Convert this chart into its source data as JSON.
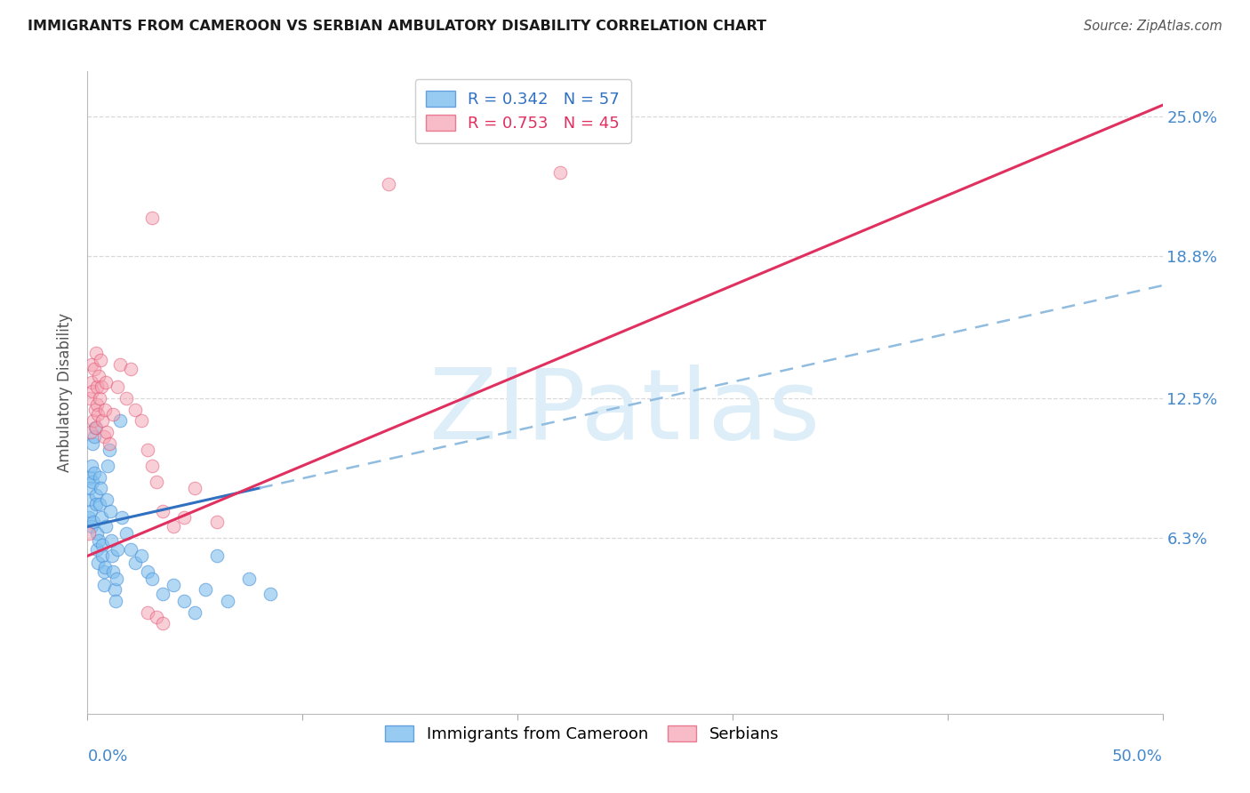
{
  "title": "IMMIGRANTS FROM CAMEROON VS SERBIAN AMBULATORY DISABILITY CORRELATION CHART",
  "source": "Source: ZipAtlas.com",
  "ylabel": "Ambulatory Disability",
  "x_min": 0.0,
  "x_max": 50.0,
  "y_min": -1.5,
  "y_max": 27.0,
  "y_ticks": [
    6.3,
    12.5,
    18.8,
    25.0
  ],
  "blue_color": "#7fbfee",
  "blue_edge_color": "#4a90d9",
  "pink_color": "#f4a0b0",
  "pink_edge_color": "#e05070",
  "blue_line_color": "#3070c0",
  "pink_line_color": "#e03060",
  "dashed_line_color": "#90bce0",
  "background_color": "#ffffff",
  "grid_color": "#d8d8d8",
  "watermark_text": "ZIPatlas",
  "watermark_color": "#ddeef8",
  "right_tick_color": "#4488cc",
  "blue_R": 0.342,
  "blue_N": 57,
  "pink_R": 0.753,
  "pink_N": 45,
  "blue_trend_x0": 0.0,
  "blue_trend_y0": 6.8,
  "blue_trend_x1": 50.0,
  "blue_trend_y1": 17.5,
  "blue_solid_x1": 8.0,
  "pink_trend_x0": 0.0,
  "pink_trend_y0": 5.5,
  "pink_trend_x1": 50.0,
  "pink_trend_y1": 25.5,
  "blue_scatter": [
    [
      0.05,
      7.2
    ],
    [
      0.08,
      8.0
    ],
    [
      0.1,
      9.0
    ],
    [
      0.12,
      8.5
    ],
    [
      0.15,
      7.5
    ],
    [
      0.18,
      6.8
    ],
    [
      0.2,
      9.5
    ],
    [
      0.22,
      10.5
    ],
    [
      0.25,
      8.8
    ],
    [
      0.28,
      7.0
    ],
    [
      0.3,
      10.8
    ],
    [
      0.32,
      9.2
    ],
    [
      0.35,
      11.2
    ],
    [
      0.38,
      8.2
    ],
    [
      0.4,
      7.8
    ],
    [
      0.42,
      6.5
    ],
    [
      0.45,
      5.8
    ],
    [
      0.48,
      5.2
    ],
    [
      0.5,
      6.2
    ],
    [
      0.55,
      7.8
    ],
    [
      0.58,
      9.0
    ],
    [
      0.6,
      8.5
    ],
    [
      0.65,
      7.2
    ],
    [
      0.68,
      6.0
    ],
    [
      0.7,
      5.5
    ],
    [
      0.75,
      4.8
    ],
    [
      0.78,
      4.2
    ],
    [
      0.8,
      5.0
    ],
    [
      0.85,
      6.8
    ],
    [
      0.9,
      8.0
    ],
    [
      0.95,
      9.5
    ],
    [
      1.0,
      10.2
    ],
    [
      1.05,
      7.5
    ],
    [
      1.1,
      6.2
    ],
    [
      1.15,
      5.5
    ],
    [
      1.2,
      4.8
    ],
    [
      1.25,
      4.0
    ],
    [
      1.3,
      3.5
    ],
    [
      1.35,
      4.5
    ],
    [
      1.4,
      5.8
    ],
    [
      1.5,
      11.5
    ],
    [
      1.6,
      7.2
    ],
    [
      1.8,
      6.5
    ],
    [
      2.0,
      5.8
    ],
    [
      2.2,
      5.2
    ],
    [
      2.5,
      5.5
    ],
    [
      2.8,
      4.8
    ],
    [
      3.0,
      4.5
    ],
    [
      3.5,
      3.8
    ],
    [
      4.0,
      4.2
    ],
    [
      4.5,
      3.5
    ],
    [
      5.0,
      3.0
    ],
    [
      5.5,
      4.0
    ],
    [
      6.0,
      5.5
    ],
    [
      6.5,
      3.5
    ],
    [
      7.5,
      4.5
    ],
    [
      8.5,
      3.8
    ]
  ],
  "pink_scatter": [
    [
      0.1,
      12.5
    ],
    [
      0.15,
      11.0
    ],
    [
      0.18,
      13.2
    ],
    [
      0.2,
      14.0
    ],
    [
      0.25,
      12.8
    ],
    [
      0.28,
      11.5
    ],
    [
      0.3,
      13.8
    ],
    [
      0.35,
      12.0
    ],
    [
      0.38,
      11.2
    ],
    [
      0.4,
      14.5
    ],
    [
      0.42,
      13.0
    ],
    [
      0.45,
      12.2
    ],
    [
      0.48,
      11.8
    ],
    [
      0.5,
      13.5
    ],
    [
      0.55,
      12.5
    ],
    [
      0.6,
      14.2
    ],
    [
      0.65,
      13.0
    ],
    [
      0.7,
      11.5
    ],
    [
      0.75,
      10.8
    ],
    [
      0.8,
      12.0
    ],
    [
      0.85,
      13.2
    ],
    [
      0.9,
      11.0
    ],
    [
      1.0,
      10.5
    ],
    [
      1.2,
      11.8
    ],
    [
      1.4,
      13.0
    ],
    [
      1.5,
      14.0
    ],
    [
      1.8,
      12.5
    ],
    [
      2.0,
      13.8
    ],
    [
      2.2,
      12.0
    ],
    [
      2.5,
      11.5
    ],
    [
      2.8,
      10.2
    ],
    [
      3.0,
      9.5
    ],
    [
      3.2,
      8.8
    ],
    [
      3.5,
      7.5
    ],
    [
      4.0,
      6.8
    ],
    [
      4.5,
      7.2
    ],
    [
      5.0,
      8.5
    ],
    [
      6.0,
      7.0
    ],
    [
      3.0,
      20.5
    ],
    [
      2.8,
      3.0
    ],
    [
      3.2,
      2.8
    ],
    [
      3.5,
      2.5
    ],
    [
      14.0,
      22.0
    ],
    [
      22.0,
      22.5
    ],
    [
      0.08,
      6.5
    ]
  ]
}
